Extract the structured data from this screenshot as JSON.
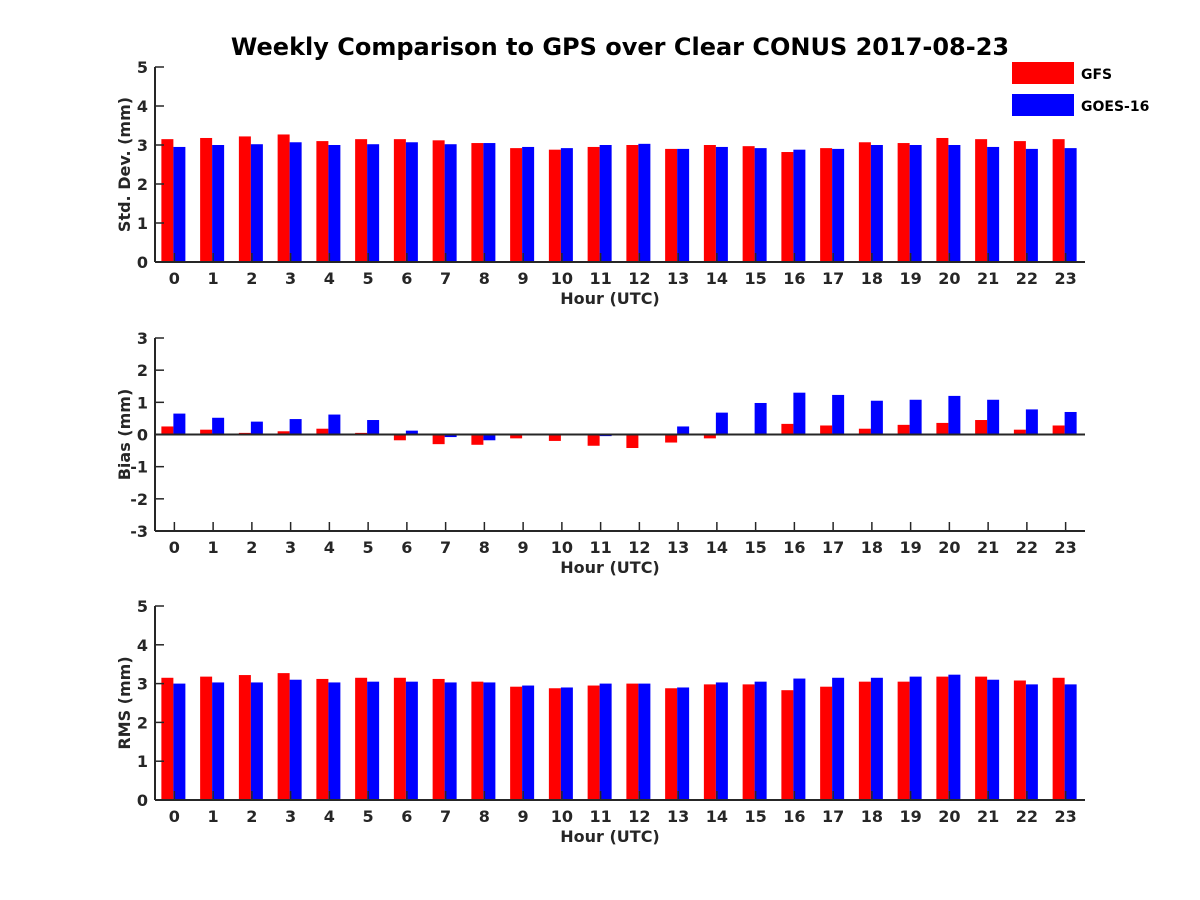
{
  "figure": {
    "title": "Weekly Comparison to GPS over Clear CONUS 2017-08-23"
  },
  "legend": {
    "placement": "top-right",
    "items": [
      {
        "label": "GFS",
        "color": "#ff0000"
      },
      {
        "label": "GOES-16",
        "color": "#0000ff"
      }
    ]
  },
  "chart_data": [
    {
      "type": "bar",
      "title": "",
      "xlabel": "Hour (UTC)",
      "ylabel": "Std. Dev. (mm)",
      "ylim": [
        0,
        5
      ],
      "yticks": [
        0,
        1,
        2,
        3,
        4,
        5
      ],
      "grid": false,
      "categories": [
        "0",
        "1",
        "2",
        "3",
        "4",
        "5",
        "6",
        "7",
        "8",
        "9",
        "10",
        "11",
        "12",
        "13",
        "14",
        "15",
        "16",
        "17",
        "18",
        "19",
        "20",
        "21",
        "22",
        "23"
      ],
      "series": [
        {
          "name": "GFS",
          "color": "#ff0000",
          "values": [
            3.15,
            3.18,
            3.22,
            3.27,
            3.1,
            3.15,
            3.15,
            3.12,
            3.05,
            2.92,
            2.88,
            2.95,
            3.0,
            2.9,
            3.0,
            2.97,
            2.82,
            2.92,
            3.07,
            3.05,
            3.18,
            3.15,
            3.1,
            3.15
          ]
        },
        {
          "name": "GOES-16",
          "color": "#0000ff",
          "values": [
            2.95,
            3.0,
            3.02,
            3.07,
            3.0,
            3.02,
            3.07,
            3.02,
            3.05,
            2.95,
            2.92,
            3.0,
            3.03,
            2.9,
            2.95,
            2.92,
            2.88,
            2.9,
            3.0,
            3.0,
            3.0,
            2.95,
            2.9,
            2.92
          ]
        }
      ]
    },
    {
      "type": "bar",
      "title": "",
      "xlabel": "Hour (UTC)",
      "ylabel": "Bias (mm)",
      "ylim": [
        -3,
        3
      ],
      "yticks": [
        -3,
        -2,
        -1,
        0,
        1,
        2,
        3
      ],
      "grid": false,
      "categories": [
        "0",
        "1",
        "2",
        "3",
        "4",
        "5",
        "6",
        "7",
        "8",
        "9",
        "10",
        "11",
        "12",
        "13",
        "14",
        "15",
        "16",
        "17",
        "18",
        "19",
        "20",
        "21",
        "22",
        "23"
      ],
      "series": [
        {
          "name": "GFS",
          "color": "#ff0000",
          "values": [
            0.25,
            0.15,
            0.05,
            0.1,
            0.18,
            0.05,
            -0.18,
            -0.3,
            -0.32,
            -0.12,
            -0.2,
            -0.35,
            -0.42,
            -0.25,
            -0.12,
            0.0,
            0.33,
            0.28,
            0.18,
            0.3,
            0.36,
            0.45,
            0.15,
            0.28
          ]
        },
        {
          "name": "GOES-16",
          "color": "#0000ff",
          "values": [
            0.65,
            0.52,
            0.4,
            0.48,
            0.62,
            0.45,
            0.12,
            -0.08,
            -0.18,
            0.0,
            0.02,
            -0.05,
            0.0,
            0.25,
            0.68,
            0.98,
            1.3,
            1.23,
            1.05,
            1.08,
            1.2,
            1.08,
            0.78,
            0.7
          ]
        }
      ]
    },
    {
      "type": "bar",
      "title": "",
      "xlabel": "Hour (UTC)",
      "ylabel": "RMS (mm)",
      "ylim": [
        0,
        5
      ],
      "yticks": [
        0,
        1,
        2,
        3,
        4,
        5
      ],
      "grid": false,
      "categories": [
        "0",
        "1",
        "2",
        "3",
        "4",
        "5",
        "6",
        "7",
        "8",
        "9",
        "10",
        "11",
        "12",
        "13",
        "14",
        "15",
        "16",
        "17",
        "18",
        "19",
        "20",
        "21",
        "22",
        "23"
      ],
      "series": [
        {
          "name": "GFS",
          "color": "#ff0000",
          "values": [
            3.15,
            3.18,
            3.22,
            3.27,
            3.12,
            3.15,
            3.15,
            3.12,
            3.05,
            2.92,
            2.88,
            2.95,
            3.0,
            2.88,
            2.98,
            2.98,
            2.83,
            2.92,
            3.05,
            3.05,
            3.18,
            3.18,
            3.08,
            3.15
          ]
        },
        {
          "name": "GOES-16",
          "color": "#0000ff",
          "values": [
            3.0,
            3.03,
            3.03,
            3.1,
            3.03,
            3.05,
            3.05,
            3.03,
            3.03,
            2.95,
            2.9,
            3.0,
            3.0,
            2.9,
            3.03,
            3.05,
            3.13,
            3.15,
            3.15,
            3.18,
            3.23,
            3.1,
            2.98,
            2.98
          ]
        }
      ]
    }
  ]
}
